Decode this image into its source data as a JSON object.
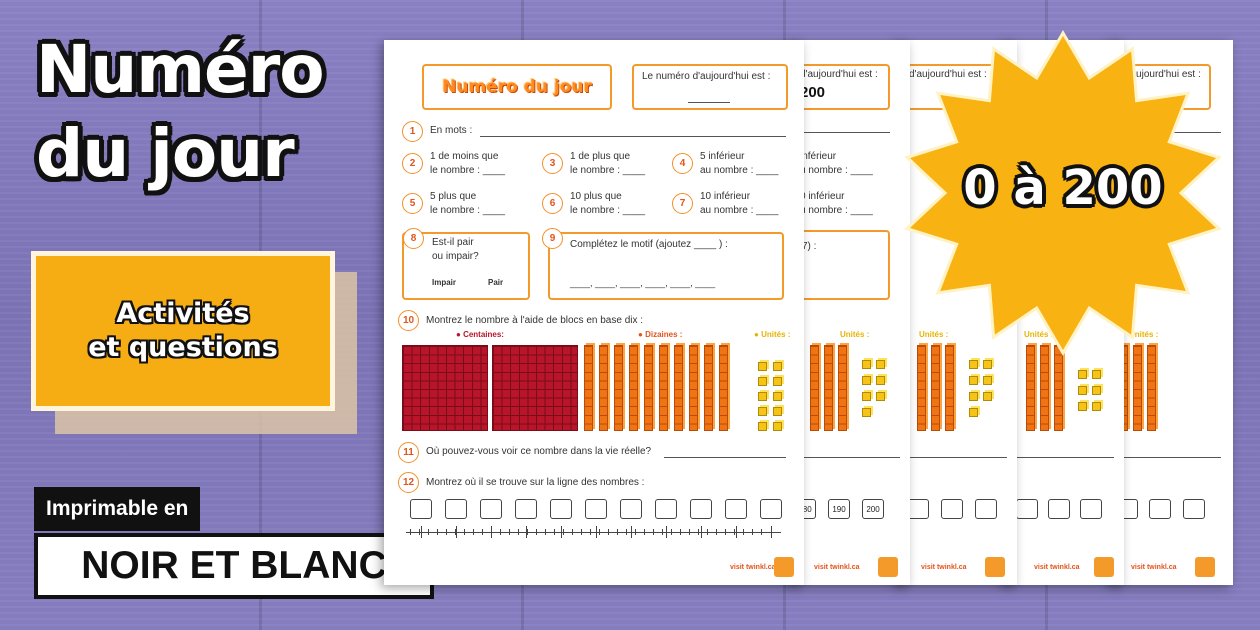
{
  "hero": {
    "title_line1": "Numéro",
    "title_line2": "du jour",
    "activities_line1": "Activités",
    "activities_line2": "et questions",
    "print_label": "Imprimable en",
    "print_mode": "NOIR ET BLANC",
    "range_badge": "0 à 200"
  },
  "worksheet": {
    "title": "Numéro du jour",
    "today_label": "Le numéro d'aujourd'hui est :",
    "q1": "En mots :",
    "q2a": "1 de moins que",
    "q2b": "le nombre : ____",
    "q3a": "1 de plus que",
    "q3b": "le nombre : ____",
    "q4a": "5 inférieur",
    "q4b": "au nombre : ____",
    "q5a": "5 plus que",
    "q5b": "le nombre : ____",
    "q6a": "10 plus que",
    "q6b": "le nombre : ____",
    "q7a": "10 inférieur",
    "q7b": "au nombre : ____",
    "q8a": "Est-il pair",
    "q8b": "ou impair?",
    "q8_odd": "Impair",
    "q8_even": "Pair",
    "q9": "Complétez le motif (ajoutez ____ ) :",
    "q9_blanks": "____, ____, ____, ____, ____, ____",
    "q10": "Montrez le nombre à l'aide de blocs en base dix :",
    "legend_hundreds": "Centaines:",
    "legend_tens": "Dizaines :",
    "legend_units": "Unités :",
    "q11": "Où pouvez-vous voir ce nombre dans la vie réelle?",
    "q12": "Montrez où il se trouve sur la ligne des nombres :",
    "footer_url": "visit twinkl.ca",
    "numbers": [
      "1",
      "2",
      "3",
      "4",
      "5",
      "6",
      "7",
      "8",
      "9",
      "10",
      "11",
      "12"
    ]
  },
  "back_sheets": {
    "s2_today": "d'aujourd'hui est :",
    "s2_number": "200",
    "s2_q1": "",
    "s2_q4a": "inférieur",
    "s2_q4b": "u nombre : ____",
    "s2_q7a": "0 inférieur",
    "s2_q7b": "u nombre : ____",
    "s2_q9": "7) :",
    "s2_units": "Unités :",
    "s2_nl": [
      "180",
      "190",
      "200"
    ],
    "s3_today": "d'aujourd'hui est :",
    "s3_units": "Unités :",
    "s4_units": "Unités :",
    "s5_today": "d'aujourd'hui est :",
    "s5_units": "Unités :",
    "footer_url": "visit twinkl.ca"
  },
  "colors": {
    "background": "#7f78b8",
    "accent_orange": "#f6ad14",
    "star": "#f8b211",
    "hundreds": "#b8142a",
    "tens": "#f07414",
    "units": "#f6c317"
  }
}
